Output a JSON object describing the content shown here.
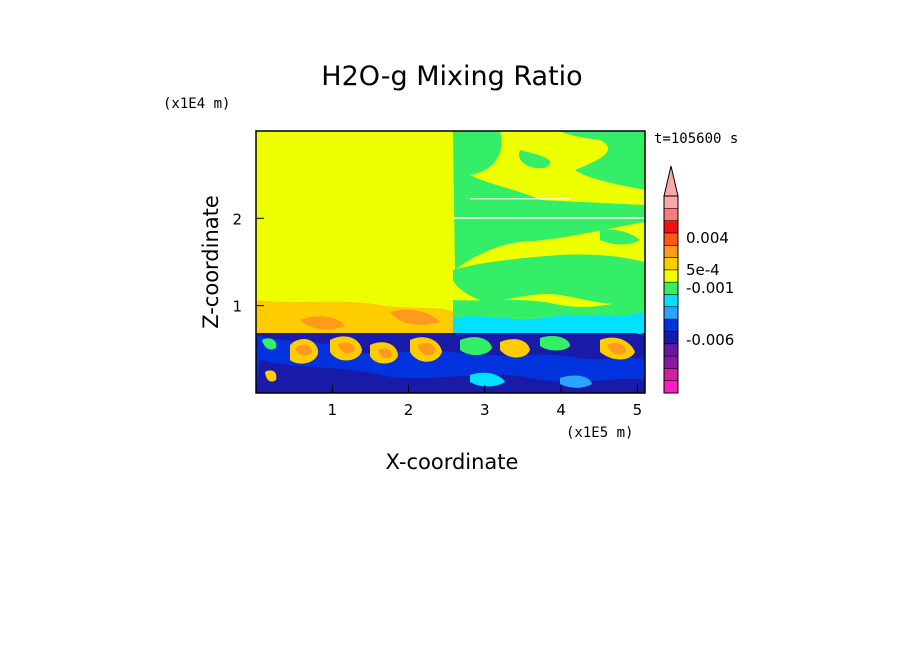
{
  "chart_data": {
    "type": "heatmap",
    "title": "H2O-g Mixing Ratio",
    "xlabel": "X-coordinate",
    "ylabel": "Z-coordinate",
    "x_unit": "(x1E5 m)",
    "y_unit": "(x1E4 m)",
    "time_label": "t=105600 s",
    "xlim": [
      0,
      5.1
    ],
    "ylim": [
      0,
      3.0
    ],
    "x_ticks": [
      1,
      2,
      3,
      4,
      5
    ],
    "y_ticks": [
      1,
      2
    ],
    "colorbar": {
      "colors": [
        "#ff1fbf",
        "#d21fa0",
        "#8a1a9c",
        "#6a16a3",
        "#1a1aa8",
        "#0033dd",
        "#2aa4ff",
        "#00e0ff",
        "#33ee66",
        "#eeff00",
        "#ffcc00",
        "#ff9a1f",
        "#ff5a0f",
        "#f01010",
        "#ff7a7a",
        "#f7a9a9"
      ],
      "tick_labels": [
        "0.004",
        "5e-4",
        "-0.001",
        "-0.006"
      ],
      "extend": "max"
    },
    "regions": [
      {
        "name": "upper-left uniform",
        "x": [
          0,
          2.58
        ],
        "z": [
          0.72,
          3.0
        ],
        "value": "yellow"
      },
      {
        "name": "upper-right mixed",
        "x": [
          2.58,
          5.1
        ],
        "z": [
          0.6,
          3.0
        ],
        "value": "green/yellow"
      },
      {
        "name": "lower turbulent layer",
        "x": [
          0,
          5.1
        ],
        "z": [
          0,
          0.72
        ],
        "value": "blue/orange mixed"
      }
    ]
  }
}
